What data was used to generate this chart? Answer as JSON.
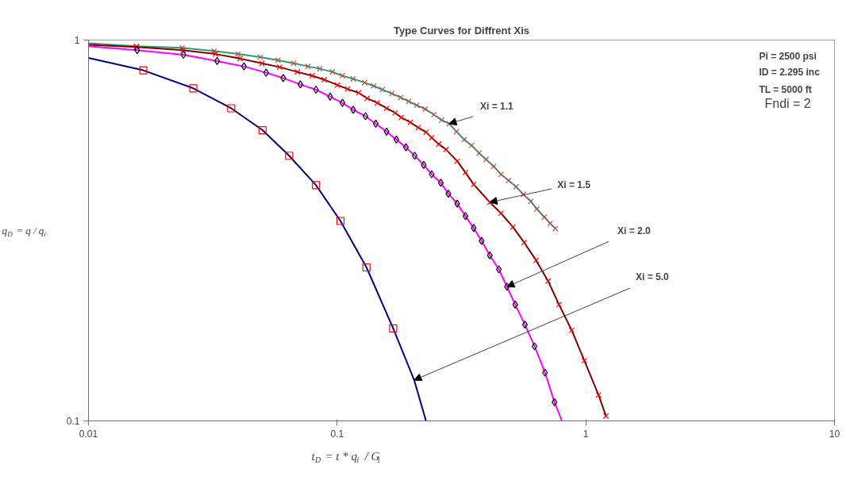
{
  "chart_data": {
    "type": "line",
    "title": "Type Curves for Diffrent Xis",
    "xlabel": "t$_{D}$ = t * q$_{i}$ / G$_{i}$",
    "ylabel": "q$_{D}$ = q / q$_{i}$",
    "log": "xy",
    "xlim": [
      0.01,
      10
    ],
    "ylim": [
      0.1,
      1
    ],
    "xticks": [
      0.01,
      0.1,
      1,
      10
    ],
    "yticks": [
      0.1,
      1
    ],
    "grid": false,
    "series": [
      {
        "color": "#339966",
        "x": [
          0.01,
          0.0156,
          0.0238,
          0.032,
          0.0399,
          0.0491,
          0.0578,
          0.0668,
          0.0762,
          0.0851,
          0.0957,
          0.105,
          0.116,
          0.129,
          0.14,
          0.152,
          0.166,
          0.18,
          0.194,
          0.209,
          0.226,
          0.245,
          0.263,
          0.282,
          0.302,
          0.324,
          0.347,
          0.372,
          0.397,
          0.426,
          0.456,
          0.489,
          0.524,
          0.561,
          0.601,
          0.635,
          0.681,
          0.719,
          0.754
        ],
        "values": [
          0.981,
          0.963,
          0.954,
          0.936,
          0.919,
          0.902,
          0.885,
          0.869,
          0.853,
          0.841,
          0.825,
          0.806,
          0.791,
          0.773,
          0.758,
          0.741,
          0.724,
          0.707,
          0.69,
          0.674,
          0.659,
          0.637,
          0.617,
          0.603,
          0.575,
          0.548,
          0.529,
          0.505,
          0.486,
          0.466,
          0.444,
          0.428,
          0.412,
          0.393,
          0.377,
          0.36,
          0.343,
          0.33,
          0.32
        ]
      },
      {
        "type": "scatter",
        "marker": "cross",
        "color": "#b05050",
        "x": [
          0.0156,
          0.0238,
          0.032,
          0.0399,
          0.0491,
          0.0578,
          0.0668,
          0.0762,
          0.0851,
          0.0957,
          0.105,
          0.116,
          0.129,
          0.14,
          0.152,
          0.166,
          0.18,
          0.194,
          0.209,
          0.226,
          0.245,
          0.263,
          0.282,
          0.302,
          0.324,
          0.347,
          0.372,
          0.397,
          0.426,
          0.456,
          0.489,
          0.524,
          0.561,
          0.601,
          0.635,
          0.681,
          0.719,
          0.754
        ],
        "values": [
          0.963,
          0.954,
          0.936,
          0.919,
          0.902,
          0.885,
          0.869,
          0.853,
          0.841,
          0.825,
          0.806,
          0.791,
          0.773,
          0.758,
          0.741,
          0.724,
          0.707,
          0.69,
          0.674,
          0.659,
          0.637,
          0.617,
          0.603,
          0.575,
          0.548,
          0.529,
          0.505,
          0.486,
          0.466,
          0.444,
          0.428,
          0.412,
          0.393,
          0.377,
          0.36,
          0.343,
          0.33,
          0.32
        ]
      },
      {
        "color": "#800000",
        "x": [
          0.01,
          0.0156,
          0.024,
          0.0324,
          0.0407,
          0.0498,
          0.0587,
          0.0692,
          0.0794,
          0.0887,
          0.1003,
          0.11,
          0.122,
          0.132,
          0.145,
          0.158,
          0.171,
          0.181,
          0.197,
          0.212,
          0.228,
          0.24,
          0.256,
          0.274,
          0.304,
          0.328,
          0.354,
          0.411,
          0.456,
          0.509,
          0.565,
          0.631,
          0.705,
          0.78,
          0.877,
          0.986,
          1.125,
          1.205
        ],
        "values": [
          0.972,
          0.959,
          0.941,
          0.919,
          0.894,
          0.869,
          0.849,
          0.825,
          0.806,
          0.787,
          0.762,
          0.744,
          0.727,
          0.703,
          0.684,
          0.662,
          0.644,
          0.626,
          0.608,
          0.589,
          0.573,
          0.554,
          0.533,
          0.516,
          0.481,
          0.449,
          0.418,
          0.375,
          0.351,
          0.323,
          0.294,
          0.264,
          0.233,
          0.202,
          0.173,
          0.144,
          0.117,
          0.103
        ]
      },
      {
        "type": "scatter",
        "marker": "cross",
        "color": "#ff0000",
        "x": [
          0.0156,
          0.024,
          0.0324,
          0.0407,
          0.0498,
          0.0587,
          0.0692,
          0.0794,
          0.0887,
          0.1003,
          0.11,
          0.122,
          0.132,
          0.145,
          0.158,
          0.171,
          0.181,
          0.197,
          0.212,
          0.228,
          0.24,
          0.256,
          0.274,
          0.304,
          0.328,
          0.354,
          0.411,
          0.456,
          0.509,
          0.565,
          0.631,
          0.705,
          0.78,
          0.877,
          0.986,
          1.125,
          1.205
        ],
        "values": [
          0.959,
          0.941,
          0.919,
          0.894,
          0.869,
          0.849,
          0.825,
          0.806,
          0.787,
          0.762,
          0.744,
          0.727,
          0.703,
          0.684,
          0.662,
          0.644,
          0.626,
          0.608,
          0.589,
          0.573,
          0.554,
          0.533,
          0.516,
          0.481,
          0.449,
          0.418,
          0.375,
          0.351,
          0.323,
          0.294,
          0.264,
          0.233,
          0.202,
          0.173,
          0.144,
          0.117,
          0.103
        ]
      },
      {
        "color": "#ff00ff",
        "x": [
          0.01,
          0.0157,
          0.0241,
          0.0329,
          0.0422,
          0.0518,
          0.0607,
          0.0711,
          0.0822,
          0.0937,
          0.105,
          0.116,
          0.13,
          0.143,
          0.158,
          0.173,
          0.189,
          0.205,
          0.223,
          0.24,
          0.261,
          0.28,
          0.304,
          0.328,
          0.354,
          0.381,
          0.411,
          0.447,
          0.482,
          0.52,
          0.569,
          0.622,
          0.685,
          0.748,
          0.802
        ],
        "values": [
          0.963,
          0.941,
          0.915,
          0.881,
          0.853,
          0.821,
          0.795,
          0.765,
          0.741,
          0.71,
          0.684,
          0.656,
          0.631,
          0.603,
          0.575,
          0.548,
          0.523,
          0.497,
          0.47,
          0.444,
          0.422,
          0.395,
          0.372,
          0.345,
          0.321,
          0.297,
          0.272,
          0.25,
          0.225,
          0.202,
          0.179,
          0.157,
          0.134,
          0.112,
          0.1
        ]
      },
      {
        "type": "scatter",
        "marker": "diamond",
        "color": "#000000",
        "x": [
          0.0157,
          0.0241,
          0.0329,
          0.0422,
          0.0518,
          0.0607,
          0.0711,
          0.0822,
          0.0937,
          0.105,
          0.116,
          0.13,
          0.143,
          0.158,
          0.173,
          0.189,
          0.205,
          0.223,
          0.24,
          0.261,
          0.28,
          0.304,
          0.328,
          0.354,
          0.381,
          0.411,
          0.447,
          0.482,
          0.52,
          0.569,
          0.622,
          0.685,
          0.748
        ],
        "values": [
          0.941,
          0.915,
          0.881,
          0.853,
          0.821,
          0.795,
          0.765,
          0.741,
          0.71,
          0.684,
          0.656,
          0.631,
          0.603,
          0.575,
          0.548,
          0.523,
          0.497,
          0.47,
          0.444,
          0.422,
          0.395,
          0.372,
          0.345,
          0.321,
          0.297,
          0.272,
          0.25,
          0.225,
          0.202,
          0.179,
          0.157,
          0.134,
          0.112
        ]
      },
      {
        "color": "#000080",
        "x": [
          0.01,
          0.0166,
          0.0264,
          0.0375,
          0.0501,
          0.0641,
          0.0822,
          0.1031,
          0.1312,
          0.168,
          0.204,
          0.2277
        ],
        "values": [
          0.898,
          0.833,
          0.747,
          0.662,
          0.58,
          0.497,
          0.416,
          0.335,
          0.253,
          0.175,
          0.128,
          0.1
        ]
      },
      {
        "type": "scatter",
        "marker": "square",
        "color": "#ff0000",
        "x": [
          0.0166,
          0.0264,
          0.0375,
          0.0501,
          0.0641,
          0.0822,
          0.1031,
          0.1312,
          0.168
        ],
        "values": [
          0.833,
          0.747,
          0.662,
          0.58,
          0.497,
          0.416,
          0.335,
          0.253,
          0.175
        ]
      }
    ],
    "annotations": [
      {
        "text": "Xi = 1.1",
        "x": 0.282,
        "y": 0.603
      },
      {
        "text": "Xi = 1.5",
        "x": 0.411,
        "y": 0.375
      },
      {
        "text": "Xi = 2.0",
        "x": 0.482,
        "y": 0.225
      },
      {
        "text": "Xi = 5.0",
        "x": 0.204,
        "y": 0.128
      },
      "Pi = 2500 psi",
      "ID = 2.295 inc",
      "TL = 5000 ft",
      "Fndi = 2"
    ]
  }
}
